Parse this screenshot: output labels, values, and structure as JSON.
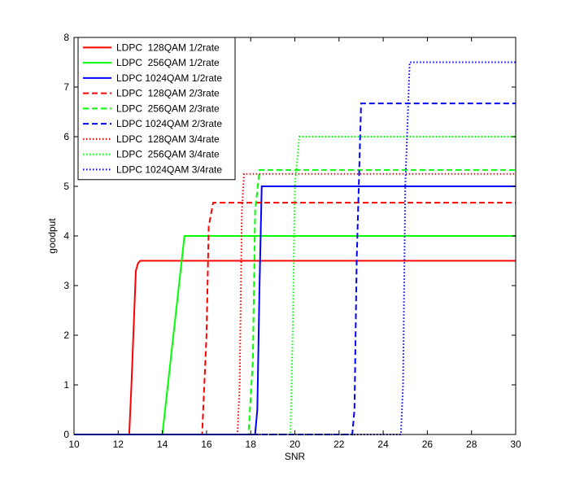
{
  "chart_data": {
    "type": "line",
    "title": "",
    "xlabel": "SNR",
    "ylabel": "goodput",
    "xlim": [
      10,
      30
    ],
    "ylim": [
      0,
      8
    ],
    "xticks": [
      10,
      12,
      14,
      16,
      18,
      20,
      22,
      24,
      26,
      28,
      30
    ],
    "yticks": [
      0,
      1,
      2,
      3,
      4,
      5,
      6,
      7,
      8
    ],
    "grid": false,
    "legend_position": "top-left",
    "series": [
      {
        "name": "LDPC  128QAM 1/2rate",
        "color": "#ff0000",
        "dash": "solid",
        "x": [
          10,
          12.5,
          12.6,
          12.8,
          12.9,
          13.0,
          30
        ],
        "y": [
          0,
          0,
          1.0,
          3.3,
          3.45,
          3.5,
          3.5
        ]
      },
      {
        "name": "LDPC  256QAM 1/2rate",
        "color": "#00ff00",
        "dash": "solid",
        "x": [
          10,
          14.0,
          15.0,
          30
        ],
        "y": [
          0,
          0,
          4.0,
          4.0
        ]
      },
      {
        "name": "LDPC 1024QAM 1/2rate",
        "color": "#0000ff",
        "dash": "solid",
        "x": [
          10,
          18.2,
          18.3,
          18.4,
          18.5,
          30
        ],
        "y": [
          0,
          0,
          0.5,
          3.0,
          5.0,
          5.0
        ]
      },
      {
        "name": "LDPC  128QAM 2/3rate",
        "color": "#ff0000",
        "dash": "dashed",
        "x": [
          10,
          15.8,
          16.0,
          16.1,
          16.3,
          30
        ],
        "y": [
          0,
          0,
          2.0,
          4.2,
          4.67,
          4.67
        ]
      },
      {
        "name": "LDPC  256QAM 2/3rate",
        "color": "#00ff00",
        "dash": "dashed",
        "x": [
          10,
          17.9,
          18.1,
          18.2,
          18.4,
          30
        ],
        "y": [
          0,
          0,
          1.5,
          4.5,
          5.33,
          5.33
        ]
      },
      {
        "name": "LDPC 1024QAM 2/3rate",
        "color": "#0000ff",
        "dash": "dashed",
        "x": [
          10,
          22.6,
          22.7,
          22.8,
          23.0,
          30
        ],
        "y": [
          0,
          0,
          0.5,
          3.5,
          6.67,
          6.67
        ]
      },
      {
        "name": "LDPC  128QAM 3/4rate",
        "color": "#ff0000",
        "dash": "dotted",
        "x": [
          10,
          17.4,
          17.5,
          17.6,
          17.7,
          30
        ],
        "y": [
          0,
          0,
          1.0,
          4.5,
          5.25,
          5.25
        ]
      },
      {
        "name": "LDPC  256QAM 3/4rate",
        "color": "#00ff00",
        "dash": "dotted",
        "x": [
          10,
          19.8,
          19.9,
          20.0,
          20.2,
          30
        ],
        "y": [
          0,
          0,
          2.0,
          5.0,
          6.0,
          6.0
        ]
      },
      {
        "name": "LDPC 1024QAM 3/4rate",
        "color": "#0000ff",
        "dash": "dotted",
        "x": [
          10,
          24.8,
          24.9,
          25.0,
          25.2,
          30
        ],
        "y": [
          0,
          0,
          1.0,
          5.0,
          7.5,
          7.5
        ]
      }
    ]
  }
}
